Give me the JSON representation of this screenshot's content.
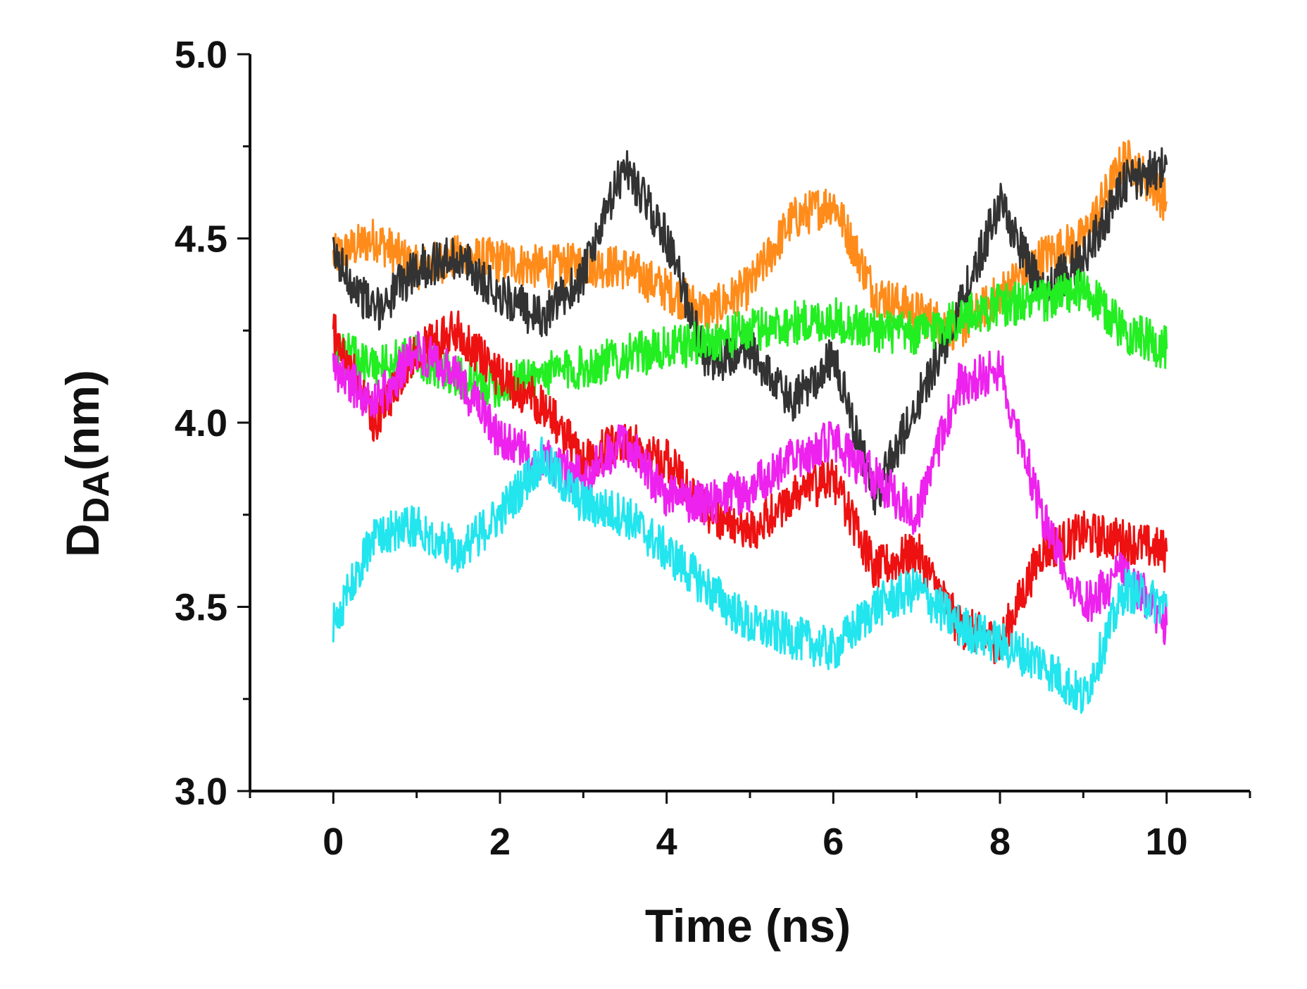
{
  "chart_data": {
    "type": "line",
    "title": "",
    "xlabel": "Time (ns)",
    "ylabel": {
      "main": "D",
      "sub": "DA",
      "unit": "(nm)"
    },
    "xlim": [
      -1,
      11
    ],
    "ylim": [
      3.0,
      5.0
    ],
    "xticks": [
      0,
      2,
      4,
      6,
      8,
      10
    ],
    "xtick_labels": [
      "0",
      "2",
      "4",
      "6",
      "8",
      "10"
    ],
    "yticks": [
      3.0,
      3.5,
      4.0,
      4.5,
      5.0
    ],
    "ytick_labels": [
      "3.0",
      "3.5",
      "4.0",
      "4.5",
      "5.0"
    ],
    "grid": false,
    "legend": "none",
    "series": [
      {
        "color": "#ff8c1a",
        "x": [
          0,
          0.5,
          1,
          1.5,
          2,
          2.5,
          3,
          3.5,
          4,
          4.5,
          5,
          5.5,
          6,
          6.5,
          7,
          7.5,
          8,
          8.5,
          9,
          9.5,
          10
        ],
        "y": [
          4.45,
          4.5,
          4.42,
          4.45,
          4.44,
          4.42,
          4.43,
          4.42,
          4.36,
          4.3,
          4.37,
          4.55,
          4.6,
          4.35,
          4.3,
          4.25,
          4.35,
          4.45,
          4.5,
          4.72,
          4.6
        ]
      },
      {
        "color": "#333333",
        "x": [
          0,
          0.5,
          1,
          1.5,
          2,
          2.5,
          3,
          3.5,
          4,
          4.5,
          5,
          5.5,
          6,
          6.5,
          7,
          7.5,
          8,
          8.5,
          9,
          9.5,
          10
        ],
        "y": [
          4.45,
          4.3,
          4.42,
          4.45,
          4.35,
          4.28,
          4.4,
          4.7,
          4.5,
          4.15,
          4.2,
          4.05,
          4.18,
          3.8,
          4.05,
          4.3,
          4.6,
          4.35,
          4.45,
          4.65,
          4.7
        ]
      },
      {
        "color": "#22ee22",
        "x": [
          0,
          0.5,
          1,
          1.5,
          2,
          2.5,
          3,
          3.5,
          4,
          4.5,
          5,
          5.5,
          6,
          6.5,
          7,
          7.5,
          8,
          8.5,
          9,
          9.5,
          10
        ],
        "y": [
          4.2,
          4.15,
          4.18,
          4.12,
          4.1,
          4.13,
          4.15,
          4.18,
          4.2,
          4.22,
          4.25,
          4.27,
          4.28,
          4.25,
          4.24,
          4.28,
          4.32,
          4.33,
          4.36,
          4.25,
          4.2
        ]
      },
      {
        "color": "#ee1111",
        "x": [
          0,
          0.5,
          1,
          1.5,
          2,
          2.5,
          3,
          3.5,
          4,
          4.5,
          5,
          5.5,
          6,
          6.5,
          7,
          7.5,
          8,
          8.5,
          9,
          9.5,
          10
        ],
        "y": [
          4.25,
          4.0,
          4.2,
          4.25,
          4.12,
          4.05,
          3.9,
          3.95,
          3.9,
          3.75,
          3.7,
          3.8,
          3.85,
          3.6,
          3.65,
          3.45,
          3.4,
          3.65,
          3.7,
          3.68,
          3.65
        ]
      },
      {
        "color": "#ee22ee",
        "x": [
          0,
          0.5,
          1,
          1.5,
          2,
          2.5,
          3,
          3.5,
          4,
          4.5,
          5,
          5.5,
          6,
          6.5,
          7,
          7.5,
          8,
          8.5,
          9,
          9.5,
          10
        ],
        "y": [
          4.15,
          4.05,
          4.2,
          4.12,
          3.95,
          3.9,
          3.85,
          3.95,
          3.8,
          3.78,
          3.82,
          3.9,
          3.95,
          3.85,
          3.75,
          4.1,
          4.15,
          3.75,
          3.5,
          3.6,
          3.45
        ]
      },
      {
        "color": "#22e5ee",
        "x": [
          0,
          0.5,
          1,
          1.5,
          2,
          2.5,
          3,
          3.5,
          4,
          4.5,
          5,
          5.5,
          6,
          6.5,
          7,
          7.5,
          8,
          8.5,
          9,
          9.5,
          10
        ],
        "y": [
          3.45,
          3.7,
          3.72,
          3.65,
          3.75,
          3.9,
          3.78,
          3.75,
          3.65,
          3.55,
          3.45,
          3.42,
          3.38,
          3.5,
          3.55,
          3.45,
          3.4,
          3.35,
          3.25,
          3.55,
          3.5
        ]
      }
    ]
  }
}
